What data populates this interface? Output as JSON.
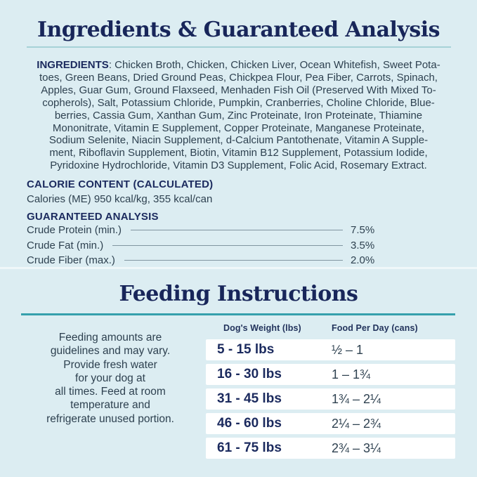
{
  "colors": {
    "background": "#dcedf2",
    "title_navy": "#18265a",
    "heading_navy": "#1b2a5e",
    "body_text": "#2e4150",
    "rule_light_teal": "#a6d2d7",
    "rule_strong_teal": "#35a0ac",
    "leader_gray": "#8195a1",
    "row_white": "#ffffff"
  },
  "section1": {
    "title": "Ingredients & Guaranteed Analysis",
    "ingredients": {
      "label": "INGREDIENTS",
      "first_line_rest": ": Chicken Broth, Chicken, Chicken Liver, Ocean Whitefish, Sweet Pota-",
      "lines": [
        "toes, Green Beans, Dried Ground Peas, Chickpea Flour, Pea Fiber, Carrots, Spinach,",
        "Apples, Guar Gum, Ground Flaxseed, Menhaden Fish Oil (Preserved With Mixed To-",
        "copherols), Salt, Potassium Chloride, Pumpkin, Cranberries, Choline Chloride, Blue-",
        "berries, Cassia Gum, Xanthan Gum, Zinc Proteinate, Iron Proteinate, Thiamine",
        "Mononitrate, Vitamin E Supplement, Copper Proteinate, Manganese Proteinate,",
        "Sodium Selenite, Niacin Supplement, d-Calcium Pantothenate, Vitamin A Supple-",
        "ment, Riboflavin Supplement, Biotin, Vitamin B12 Supplement, Potassium Iodide,",
        "Pyridoxine Hydrochloride, Vitamin D3 Supplement, Folic Acid, Rosemary Extract."
      ]
    },
    "calorie": {
      "heading": "CALORIE CONTENT (CALCULATED)",
      "text": "Calories (ME) 950 kcal/kg, 355 kcal/can"
    },
    "analysis": {
      "heading": "GUARANTEED ANALYSIS",
      "rows": [
        {
          "label": "Crude Protein (min.)",
          "value": "7.5%"
        },
        {
          "label": "Crude Fat (min.)",
          "value": "3.5%"
        },
        {
          "label": "Crude Fiber (max.)",
          "value": "2.0%"
        }
      ]
    }
  },
  "section2": {
    "title": "Feeding Instructions",
    "note_lines": [
      "Feeding amounts are",
      "guidelines and may vary.",
      "Provide fresh water",
      "for your dog at",
      "all times. Feed at room",
      "temperature and",
      "refrigerate unused portion."
    ],
    "table": {
      "headers": [
        "Dog's Weight (lbs)",
        "Food Per Day (cans)"
      ],
      "rows": [
        {
          "weight": "5 - 15 lbs",
          "food": "½ – 1"
        },
        {
          "weight": "16 - 30 lbs",
          "food": "1 – 1¾"
        },
        {
          "weight": "31 - 45 lbs",
          "food": "1¾ – 2¼"
        },
        {
          "weight": "46 - 60 lbs",
          "food": "2¼ – 2¾"
        },
        {
          "weight": "61 - 75 lbs",
          "food": "2¾ – 3¼"
        }
      ]
    }
  }
}
